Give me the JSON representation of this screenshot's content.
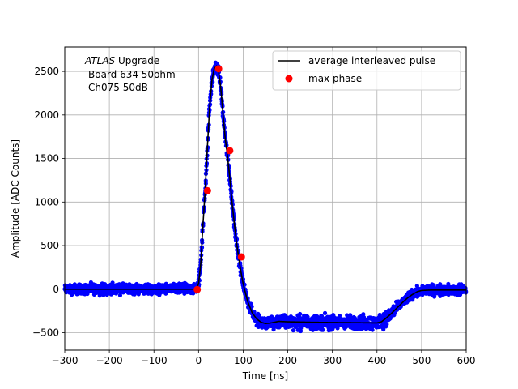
{
  "chart_data": {
    "type": "scatter",
    "xlabel": "Time [ns]",
    "ylabel": "Amplitude [ADC Counts]",
    "xlim": [
      -300,
      600
    ],
    "ylim": [
      -700,
      2780
    ],
    "xticks": [
      -300,
      -200,
      -100,
      0,
      100,
      200,
      300,
      400,
      500,
      600
    ],
    "yticks": [
      -500,
      0,
      500,
      1000,
      1500,
      2000,
      2500
    ],
    "grid": true,
    "legend_position": "top-right",
    "annotation": {
      "italic": "ATLAS",
      "line1_rest": " Upgrade",
      "line2": "Board 634 50ohm",
      "line3": "Ch075 50dB"
    },
    "colors": {
      "samples": "#0000ff",
      "average": "#000000",
      "max_phase": "#ff0000"
    },
    "series": [
      {
        "name": "average interleaved pulse",
        "kind": "line",
        "x": [
          -300,
          -10,
          -5,
          0,
          5,
          10,
          15,
          20,
          25,
          30,
          35,
          40,
          45,
          50,
          55,
          60,
          65,
          70,
          75,
          80,
          85,
          90,
          95,
          100,
          110,
          120,
          130,
          140,
          150,
          160,
          180,
          200,
          250,
          300,
          350,
          400,
          410,
          420,
          430,
          440,
          450,
          460,
          470,
          480,
          490,
          500,
          520,
          560,
          600
        ],
        "y": [
          0,
          0,
          5,
          60,
          300,
          750,
          1150,
          1650,
          2100,
          2400,
          2530,
          2560,
          2500,
          2300,
          2000,
          1720,
          1520,
          1280,
          1000,
          760,
          540,
          360,
          200,
          60,
          -140,
          -270,
          -340,
          -380,
          -395,
          -390,
          -370,
          -375,
          -380,
          -383,
          -385,
          -388,
          -375,
          -335,
          -290,
          -240,
          -190,
          -140,
          -95,
          -60,
          -30,
          -15,
          -10,
          -10,
          -10
        ]
      },
      {
        "name": "max phase",
        "kind": "points",
        "x": [
          -3,
          20,
          45,
          70,
          96
        ],
        "y": [
          -5,
          1130,
          2530,
          1590,
          370
        ]
      }
    ]
  }
}
